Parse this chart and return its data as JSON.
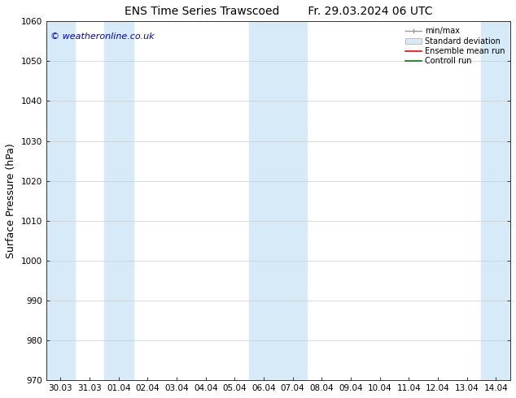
{
  "title_left": "ENS Time Series Trawscoed",
  "title_right": "Fr. 29.03.2024 06 UTC",
  "ylabel": "Surface Pressure (hPa)",
  "ylim": [
    970,
    1060
  ],
  "yticks": [
    970,
    980,
    990,
    1000,
    1010,
    1020,
    1030,
    1040,
    1050,
    1060
  ],
  "xtick_labels": [
    "30.03",
    "31.03",
    "01.04",
    "02.04",
    "03.04",
    "04.04",
    "05.04",
    "06.04",
    "07.04",
    "08.04",
    "09.04",
    "10.04",
    "11.04",
    "12.04",
    "13.04",
    "14.04"
  ],
  "xtick_positions": [
    1,
    2,
    3,
    4,
    5,
    6,
    7,
    8,
    9,
    10,
    11,
    12,
    13,
    14,
    15,
    16
  ],
  "xlim": [
    0.5,
    16.5
  ],
  "shaded_bands": [
    {
      "x_start": 0.5,
      "x_end": 1.5,
      "color": "#d6eaf8"
    },
    {
      "x_start": 2.5,
      "x_end": 3.5,
      "color": "#d6eaf8"
    },
    {
      "x_start": 7.5,
      "x_end": 9.5,
      "color": "#d6eaf8"
    },
    {
      "x_start": 15.5,
      "x_end": 16.5,
      "color": "#d6eaf8"
    }
  ],
  "watermark": "© weatheronline.co.uk",
  "watermark_color": "#0000cc",
  "bg_color": "#ffffff",
  "plot_bg_color": "#ffffff",
  "legend_items": [
    {
      "label": "min/max",
      "color": "#aaaaaa",
      "type": "errorbar"
    },
    {
      "label": "Standard deviation",
      "color": "#d6eaf8",
      "type": "fill"
    },
    {
      "label": "Ensemble mean run",
      "color": "#ff0000",
      "type": "line"
    },
    {
      "label": "Controll run",
      "color": "#008000",
      "type": "line"
    }
  ],
  "title_fontsize": 10,
  "tick_fontsize": 7.5,
  "label_fontsize": 9,
  "watermark_fontsize": 8
}
